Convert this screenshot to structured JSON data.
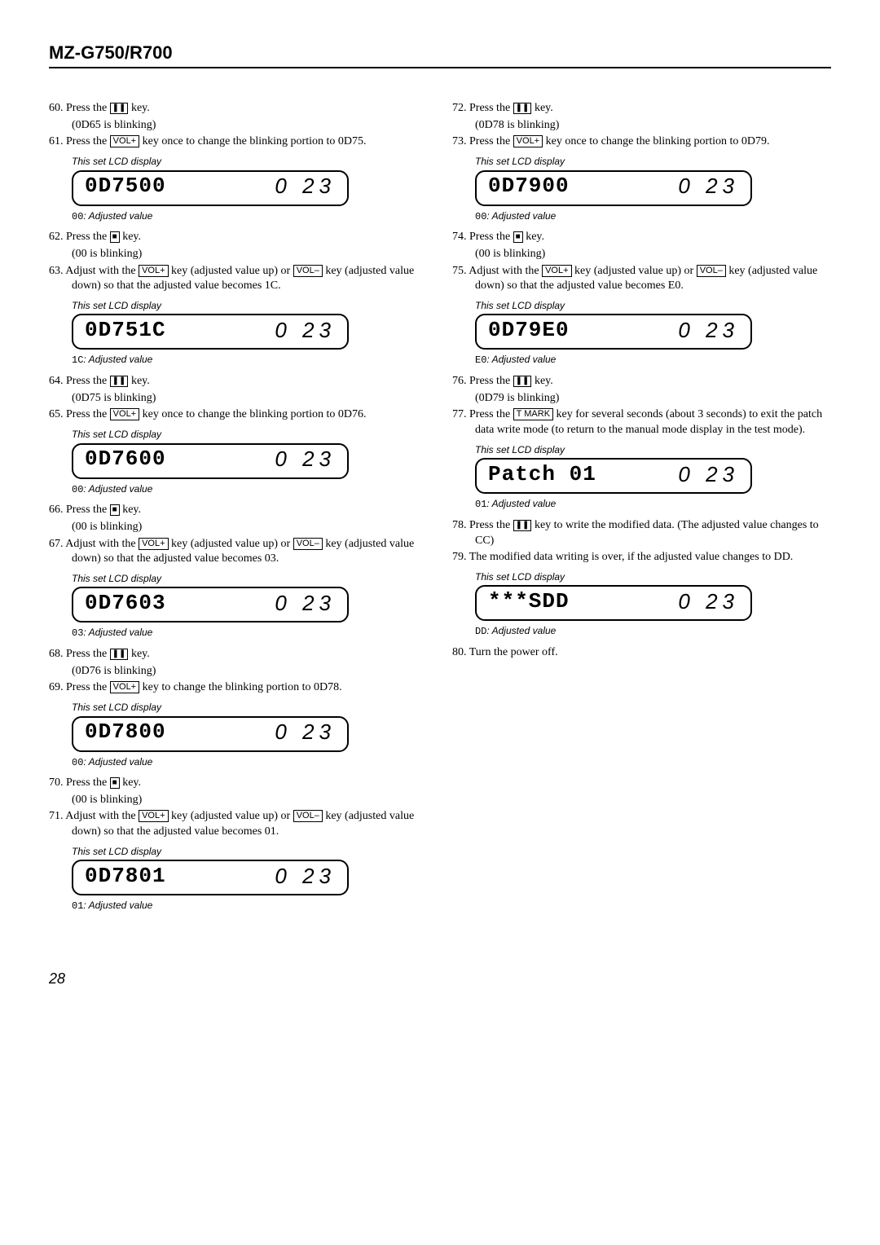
{
  "header": "MZ-G750/R700",
  "pageNumber": "28",
  "lcdSide": "0 23",
  "icons": {
    "pause": "❚❚",
    "stop": "■"
  },
  "keys": {
    "volp": "VOL+",
    "volm": "VOL–",
    "tmark": "T MARK"
  },
  "lcdLabel": "This set LCD display",
  "adjSuffix": ": Adjusted value",
  "left": [
    {
      "n": "60.",
      "t": [
        "Press the ",
        "PAUSE",
        " key."
      ],
      "sub": "(0D65 is blinking)"
    },
    {
      "n": "61.",
      "t": [
        "Press the ",
        "VOLP",
        " key once to change the blinking portion to 0D75."
      ],
      "lcd": "0D7500",
      "adj": "00"
    },
    {
      "n": "62.",
      "t": [
        "Press the ",
        "STOP",
        " key."
      ],
      "sub": "(00 is blinking)"
    },
    {
      "n": "63.",
      "t": [
        "Adjust with the ",
        "VOLP",
        " key (adjusted value up) or ",
        "VOLM",
        " key (adjusted value down) so that the adjusted value becomes 1C."
      ],
      "lcd": "0D751C",
      "adj": "1C"
    },
    {
      "n": "64.",
      "t": [
        "Press the ",
        "PAUSE",
        " key."
      ],
      "sub": "(0D75 is blinking)"
    },
    {
      "n": "65.",
      "t": [
        "Press the ",
        "VOLP",
        " key once to change the blinking portion to 0D76."
      ],
      "lcd": "0D7600",
      "adj": "00"
    },
    {
      "n": "66.",
      "t": [
        "Press the ",
        "STOP",
        " key."
      ],
      "sub": "(00 is blinking)"
    },
    {
      "n": "67.",
      "t": [
        "Adjust with the ",
        "VOLP",
        " key (adjusted value up) or ",
        "VOLM",
        " key (adjusted value down) so that the adjusted value becomes 03."
      ],
      "lcd": "0D7603",
      "adj": "03"
    },
    {
      "n": "68.",
      "t": [
        "Press the ",
        "PAUSE",
        " key."
      ],
      "sub": "(0D76 is blinking)"
    },
    {
      "n": "69.",
      "t": [
        "Press the ",
        "VOLP",
        " key to change the blinking portion to 0D78."
      ],
      "lcd": "0D7800",
      "adj": "00"
    },
    {
      "n": "70.",
      "t": [
        "Press the ",
        "STOP",
        " key."
      ],
      "sub": "(00 is blinking)"
    },
    {
      "n": "71.",
      "t": [
        "Adjust with the ",
        "VOLP",
        " key (adjusted value up) or ",
        "VOLM",
        " key (adjusted value down) so that the adjusted value becomes 01."
      ],
      "lcd": "0D7801",
      "adj": "01"
    }
  ],
  "right": [
    {
      "n": "72.",
      "t": [
        "Press the ",
        "PAUSE",
        " key."
      ],
      "sub": "(0D78 is blinking)"
    },
    {
      "n": "73.",
      "t": [
        "Press the ",
        "VOLP",
        " key once to change the blinking portion to 0D79."
      ],
      "lcd": "0D7900",
      "adj": "00"
    },
    {
      "n": "74.",
      "t": [
        "Press the ",
        "STOP",
        " key."
      ],
      "sub": "(00 is blinking)"
    },
    {
      "n": "75.",
      "t": [
        "Adjust with the ",
        "VOLP",
        " key (adjusted value up) or ",
        "VOLM",
        " key (adjusted value down) so that the adjusted value becomes E0."
      ],
      "lcd": "0D79E0",
      "adj": "E0"
    },
    {
      "n": "76.",
      "t": [
        "Press the ",
        "PAUSE",
        " key."
      ],
      "sub": "(0D79 is blinking)"
    },
    {
      "n": "77.",
      "t": [
        "Press the ",
        "TMARK",
        " key for several seconds (about 3 seconds) to exit the patch data write mode (to return to the manual mode display in the test mode)."
      ],
      "lcd": "Patch 01",
      "adj": "01"
    },
    {
      "n": "78.",
      "t": [
        "Press the ",
        "PAUSE",
        " key to write the modified data. (The adjusted value changes to CC)"
      ]
    },
    {
      "n": "79.",
      "t": [
        "The modified data writing is over, if the adjusted value changes to DD."
      ],
      "lcd": "***SDD",
      "adj": "DD"
    },
    {
      "n": "80.",
      "t": [
        "Turn the power off."
      ]
    }
  ]
}
